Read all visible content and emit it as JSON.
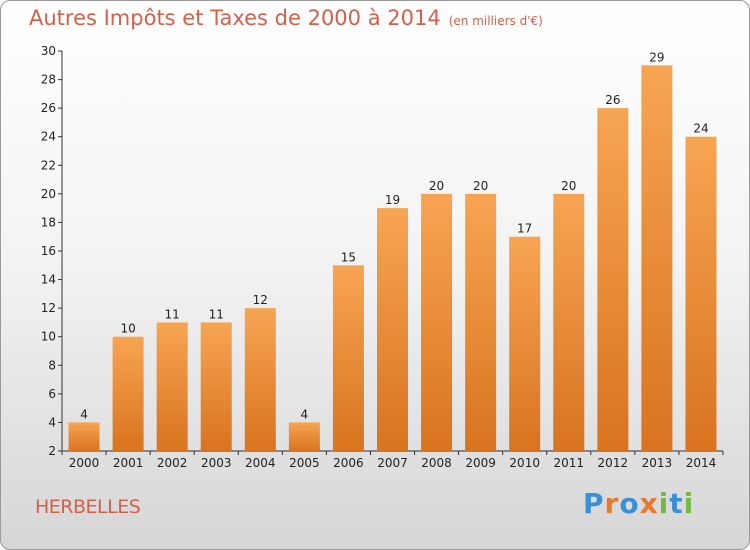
{
  "title": "Autres Impôts et Taxes de 2000 à 2014",
  "title_unit": "(en milliers d'€)",
  "place_name": "HERBELLES",
  "logo": {
    "text": "Proxiti",
    "letters": [
      "P",
      "r",
      "o",
      "x",
      "i",
      "t",
      "i"
    ],
    "colors": [
      "#3b8fd6",
      "#e8792f",
      "#3b8fd6",
      "#e8792f",
      "#77b843",
      "#3b8fd6",
      "#77b843"
    ]
  },
  "colors": {
    "bar_top": "#f7a553",
    "bar_bottom": "#d9731e",
    "title": "#d5604a",
    "place": "#d5604a"
  },
  "chart_data": {
    "type": "bar",
    "categories": [
      "2000",
      "2001",
      "2002",
      "2003",
      "2004",
      "2005",
      "2006",
      "2007",
      "2008",
      "2009",
      "2010",
      "2011",
      "2012",
      "2013",
      "2014"
    ],
    "values": [
      4,
      10,
      11,
      11,
      12,
      4,
      15,
      19,
      20,
      20,
      17,
      20,
      26,
      29,
      24
    ],
    "data_labels": [
      "4",
      "10",
      "11",
      "11",
      "12",
      "4",
      "15",
      "19",
      "20",
      "20",
      "17",
      "20",
      "26",
      "29",
      "24"
    ],
    "yticks": [
      "2",
      "4",
      "6",
      "8",
      "10",
      "12",
      "14",
      "16",
      "18",
      "20",
      "22",
      "24",
      "26",
      "28",
      "30"
    ],
    "ylim": [
      2,
      30
    ],
    "grid": false,
    "title": "Autres Impôts et Taxes de 2000 à 2014",
    "xlabel": "",
    "ylabel": ""
  }
}
